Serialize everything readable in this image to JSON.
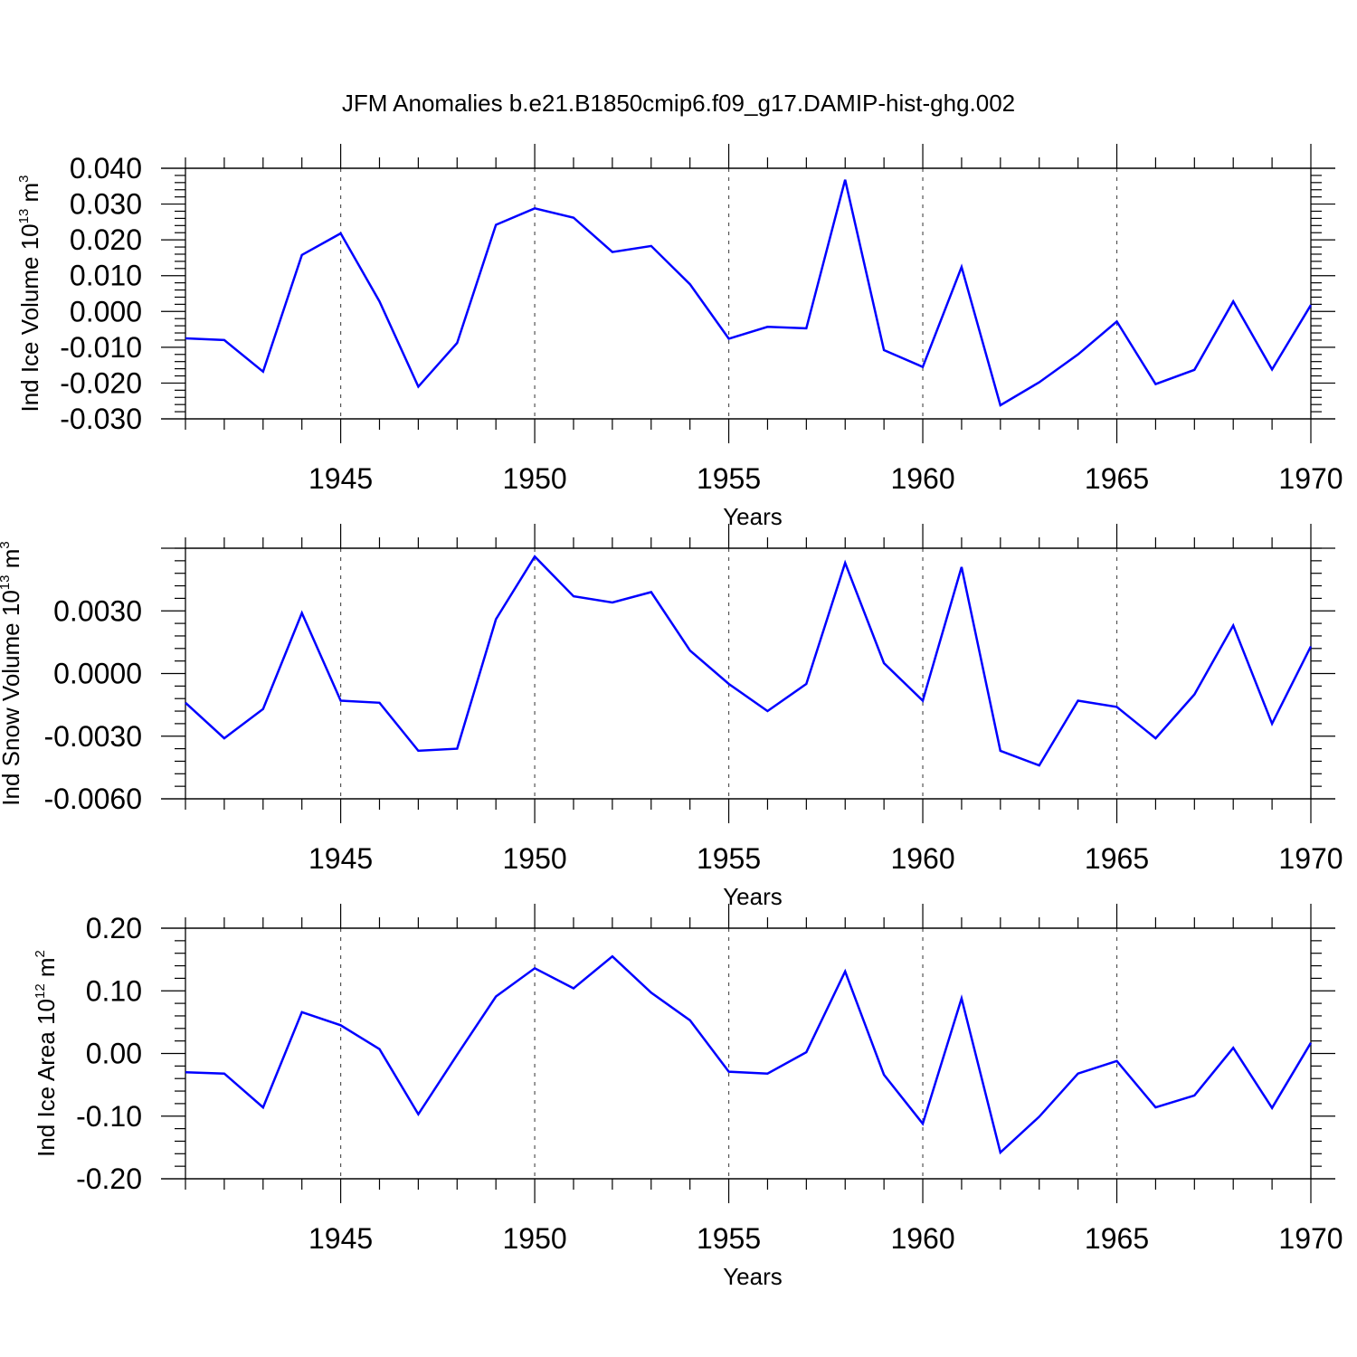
{
  "title": "JFM Anomalies b.e21.B1850cmip6.f09_g17.DAMIP-hist-ghg.002",
  "chart_data": [
    {
      "type": "line",
      "xlabel": "Years",
      "ylabel": {
        "text": "Ind Ice Volume 10",
        "exp": "13",
        "unit": " m",
        "unit_exp": "3"
      },
      "xlim": [
        1941,
        1970
      ],
      "ylim": [
        -0.03,
        0.04
      ],
      "yticks": [
        -0.03,
        -0.02,
        -0.01,
        0.0,
        0.01,
        0.02,
        0.03,
        0.04
      ],
      "ytick_labels": [
        "-0.030",
        "-0.020",
        "-0.010",
        "0.000",
        "0.010",
        "0.020",
        "0.030",
        "0.040"
      ],
      "xticks": [
        1945,
        1950,
        1955,
        1960,
        1965,
        1970
      ],
      "xtick_labels": [
        "1945",
        "1950",
        "1955",
        "1960",
        "1965",
        "1970"
      ],
      "grid": "vertical dashed at major x ticks",
      "color": "#0000ff",
      "x": [
        1941,
        1942,
        1943,
        1944,
        1945,
        1946,
        1947,
        1948,
        1949,
        1950,
        1951,
        1952,
        1953,
        1954,
        1955,
        1956,
        1957,
        1958,
        1959,
        1960,
        1961,
        1962,
        1963,
        1964,
        1965,
        1966,
        1967,
        1968,
        1969,
        1970
      ],
      "values": [
        -0.0075,
        -0.008,
        -0.0168,
        0.0158,
        0.0218,
        0.0028,
        -0.021,
        -0.0088,
        0.0242,
        0.0288,
        0.0262,
        0.0166,
        0.0183,
        0.0076,
        -0.0076,
        -0.0043,
        -0.0047,
        0.0368,
        -0.0108,
        -0.0155,
        0.0124,
        -0.0262,
        -0.0198,
        -0.012,
        -0.0028,
        -0.0203,
        -0.0163,
        0.0028,
        -0.0162,
        0.0018
      ]
    },
    {
      "type": "line",
      "xlabel": "Years",
      "ylabel": {
        "text": "Ind Snow Volume 10",
        "exp": "13",
        "unit": " m",
        "unit_exp": "3"
      },
      "xlim": [
        1941,
        1970
      ],
      "ylim": [
        -0.006,
        0.006
      ],
      "yticks": [
        -0.006,
        -0.003,
        0.0,
        0.003
      ],
      "ytick_labels": [
        "-0.0060",
        "-0.0030",
        "0.0000",
        "0.0030"
      ],
      "xticks": [
        1945,
        1950,
        1955,
        1960,
        1965,
        1970
      ],
      "xtick_labels": [
        "1945",
        "1950",
        "1955",
        "1960",
        "1965",
        "1970"
      ],
      "grid": "vertical dashed at major x ticks",
      "color": "#0000ff",
      "x": [
        1941,
        1942,
        1943,
        1944,
        1945,
        1946,
        1947,
        1948,
        1949,
        1950,
        1951,
        1952,
        1953,
        1954,
        1955,
        1956,
        1957,
        1958,
        1959,
        1960,
        1961,
        1962,
        1963,
        1964,
        1965,
        1966,
        1967,
        1968,
        1969,
        1970
      ],
      "values": [
        -0.0014,
        -0.0031,
        -0.0017,
        0.0029,
        -0.0013,
        -0.0014,
        -0.0037,
        -0.0036,
        0.0026,
        0.0056,
        0.0037,
        0.0034,
        0.0039,
        0.0011,
        -0.0005,
        -0.0018,
        -0.0005,
        0.0053,
        0.0005,
        -0.0013,
        0.0051,
        -0.0037,
        -0.0044,
        -0.0013,
        -0.0016,
        -0.0031,
        -0.001,
        0.0023,
        -0.0024,
        0.0013
      ]
    },
    {
      "type": "line",
      "xlabel": "Years",
      "ylabel": {
        "text": "Ind Ice Area 10",
        "exp": "12",
        "unit": " m",
        "unit_exp": "2"
      },
      "xlim": [
        1941,
        1970
      ],
      "ylim": [
        -0.2,
        0.2
      ],
      "yticks": [
        -0.2,
        -0.1,
        0.0,
        0.1,
        0.2
      ],
      "ytick_labels": [
        "-0.20",
        "-0.10",
        "0.00",
        "0.10",
        "0.20"
      ],
      "xticks": [
        1945,
        1950,
        1955,
        1960,
        1965,
        1970
      ],
      "xtick_labels": [
        "1945",
        "1950",
        "1955",
        "1960",
        "1965",
        "1970"
      ],
      "grid": "vertical dashed at major x ticks",
      "color": "#0000ff",
      "x": [
        1941,
        1942,
        1943,
        1944,
        1945,
        1946,
        1947,
        1948,
        1949,
        1950,
        1951,
        1952,
        1953,
        1954,
        1955,
        1956,
        1957,
        1958,
        1959,
        1960,
        1961,
        1962,
        1963,
        1964,
        1965,
        1966,
        1967,
        1968,
        1969,
        1970
      ],
      "values": [
        -0.03,
        -0.032,
        -0.086,
        0.066,
        0.045,
        0.007,
        -0.097,
        -0.002,
        0.091,
        0.136,
        0.104,
        0.155,
        0.097,
        0.053,
        -0.029,
        -0.032,
        0.002,
        0.131,
        -0.034,
        -0.112,
        0.088,
        -0.158,
        -0.101,
        -0.032,
        -0.012,
        -0.086,
        -0.067,
        0.009,
        -0.087,
        0.017
      ]
    }
  ]
}
